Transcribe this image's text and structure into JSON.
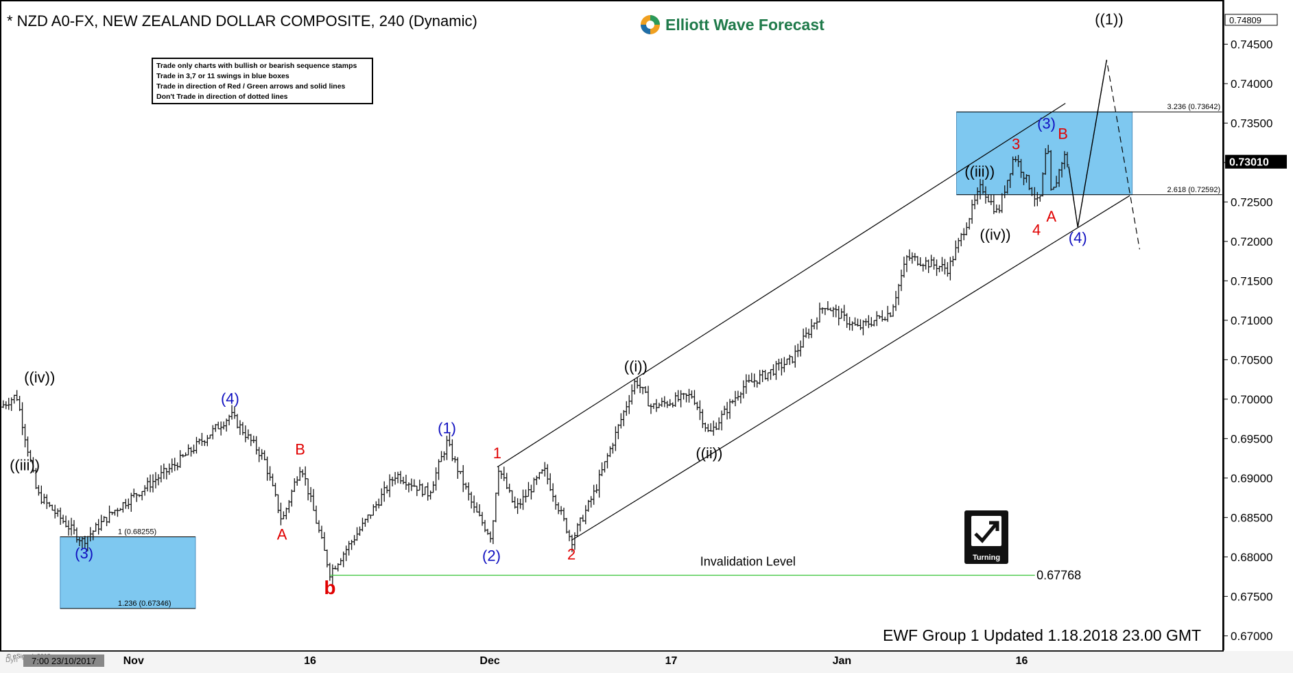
{
  "header": {
    "title": "* NZD A0-FX, NEW ZEALAND DOLLAR COMPOSITE, 240 (Dynamic)",
    "logo_text": "Elliott Wave Forecast"
  },
  "rules_box": {
    "lines": [
      "Trade only charts with bullish or bearish sequence stamps",
      "Trade in 3,7 or 11 swings in blue boxes",
      "Trade in direction of Red / Green arrows and solid lines",
      "Don't Trade in direction of dotted lines"
    ]
  },
  "footer_text": "EWF Group 1 Updated 1.18.2018 23.00 GMT",
  "badge": {
    "label": "Turning",
    "icon": "turning-arrow-icon"
  },
  "copyright": "© eSignal, 2018",
  "cursor_time": "7:00 23/10/2017",
  "corner_label": "Dyn",
  "colors": {
    "blue_box": "#7ec8f0",
    "invalidation_line": "#3ac43a",
    "red_label": "#e00000",
    "blue_label": "#1010c0",
    "current_price_bg": "#000000"
  },
  "chart_data": {
    "type": "ohlc",
    "instrument": "NZD A0-FX",
    "ylim": [
      0.6665,
      0.7485
    ],
    "y_ticks": [
      "0.74809",
      "0.74500",
      "0.74000",
      "0.73500",
      "0.73000",
      "0.72500",
      "0.72000",
      "0.71500",
      "0.71000",
      "0.70500",
      "0.70000",
      "0.69500",
      "0.69000",
      "0.68500",
      "0.68000",
      "0.67500",
      "0.67000"
    ],
    "current_price": "0.73010",
    "x_ticks": [
      "Nov",
      "16",
      "Dec",
      "17",
      "Jan",
      "16"
    ],
    "price_path": [
      [
        0,
        0.699
      ],
      [
        20,
        0.7005
      ],
      [
        45,
        0.688
      ],
      [
        100,
        0.682
      ],
      [
        140,
        0.686
      ],
      [
        210,
        0.6915
      ],
      [
        280,
        0.698
      ],
      [
        320,
        0.6925
      ],
      [
        342,
        0.6845
      ],
      [
        365,
        0.6918
      ],
      [
        400,
        0.678
      ],
      [
        440,
        0.684
      ],
      [
        480,
        0.6905
      ],
      [
        520,
        0.688
      ],
      [
        542,
        0.6945
      ],
      [
        575,
        0.686
      ],
      [
        596,
        0.6825
      ],
      [
        604,
        0.6915
      ],
      [
        625,
        0.686
      ],
      [
        660,
        0.691
      ],
      [
        693,
        0.682
      ],
      [
        720,
        0.688
      ],
      [
        771,
        0.7025
      ],
      [
        790,
        0.699
      ],
      [
        840,
        0.7005
      ],
      [
        860,
        0.6955
      ],
      [
        900,
        0.7015
      ],
      [
        960,
        0.705
      ],
      [
        1000,
        0.712
      ],
      [
        1040,
        0.709
      ],
      [
        1080,
        0.711
      ],
      [
        1100,
        0.718
      ],
      [
        1150,
        0.7165
      ],
      [
        1190,
        0.727
      ],
      [
        1210,
        0.7235
      ],
      [
        1230,
        0.731
      ],
      [
        1260,
        0.7245
      ],
      [
        1270,
        0.7325
      ],
      [
        1275,
        0.7255
      ],
      [
        1290,
        0.731
      ],
      [
        1296,
        0.7295
      ]
    ],
    "wave_labels": [
      {
        "text": "((iv))",
        "x": 48,
        "y": 0.7021,
        "color": "black"
      },
      {
        "text": "((iii))",
        "x": 30,
        "y": 0.691,
        "color": "black"
      },
      {
        "text": "(3)",
        "x": 102,
        "y": 0.6798,
        "color": "blue"
      },
      {
        "text": "(4)",
        "x": 279,
        "y": 0.6994,
        "color": "blue"
      },
      {
        "text": "B",
        "x": 364,
        "y": 0.693,
        "color": "red"
      },
      {
        "text": "A",
        "x": 342,
        "y": 0.6822,
        "color": "red"
      },
      {
        "text": "b",
        "x": 400,
        "y": 0.6753,
        "color": "red"
      },
      {
        "text": "(1)",
        "x": 542,
        "y": 0.6957,
        "color": "blue"
      },
      {
        "text": "(2)",
        "x": 596,
        "y": 0.6795,
        "color": "blue"
      },
      {
        "text": "1",
        "x": 603,
        "y": 0.6925,
        "color": "red"
      },
      {
        "text": "2",
        "x": 693,
        "y": 0.6797,
        "color": "red"
      },
      {
        "text": "((i))",
        "x": 771,
        "y": 0.7035,
        "color": "black"
      },
      {
        "text": "((ii))",
        "x": 860,
        "y": 0.6925,
        "color": "black"
      },
      {
        "text": "((iii))",
        "x": 1188,
        "y": 0.7282,
        "color": "black"
      },
      {
        "text": "((iv))",
        "x": 1207,
        "y": 0.7202,
        "color": "black"
      },
      {
        "text": "3",
        "x": 1232,
        "y": 0.7317,
        "color": "red"
      },
      {
        "text": "4",
        "x": 1257,
        "y": 0.7208,
        "color": "red"
      },
      {
        "text": "(3)",
        "x": 1269,
        "y": 0.7343,
        "color": "blue"
      },
      {
        "text": "B",
        "x": 1289,
        "y": 0.733,
        "color": "red"
      },
      {
        "text": "A",
        "x": 1275,
        "y": 0.7225,
        "color": "red"
      },
      {
        "text": "(4)",
        "x": 1307,
        "y": 0.7198,
        "color": "blue"
      },
      {
        "text": "((1))",
        "x": 1345,
        "y": 0.7475,
        "color": "black"
      }
    ],
    "fib_boxes": [
      {
        "x0": 73,
        "x1": 237,
        "top": 0.68255,
        "bottom": 0.67346,
        "top_label": "1 (0.68255)",
        "bottom_label": "1.236 (0.67346)"
      },
      {
        "x0": 1160,
        "x1": 1373,
        "top": 0.73642,
        "bottom": 0.72592,
        "top_label": "3.236 (0.73642)",
        "bottom_label": "2.618 (0.72592)"
      }
    ],
    "invalidation": {
      "label": "Invalidation Level",
      "value": "0.67768",
      "level": 0.67768,
      "x0": 400,
      "x1": 1255
    },
    "channel": [
      {
        "x0": 603,
        "y0": 0.6914,
        "x1": 1292,
        "y1": 0.7375
      },
      {
        "x0": 693,
        "y0": 0.6821,
        "x1": 1370,
        "y1": 0.7258
      }
    ],
    "projection_solid": [
      [
        1296,
        0.7295
      ],
      [
        1307,
        0.7218
      ],
      [
        1342,
        0.743
      ]
    ],
    "projection_dashed": [
      [
        1296,
        0.7295
      ],
      [
        1307,
        0.7218
      ],
      [
        1342,
        0.743
      ],
      [
        1382,
        0.719
      ]
    ]
  }
}
